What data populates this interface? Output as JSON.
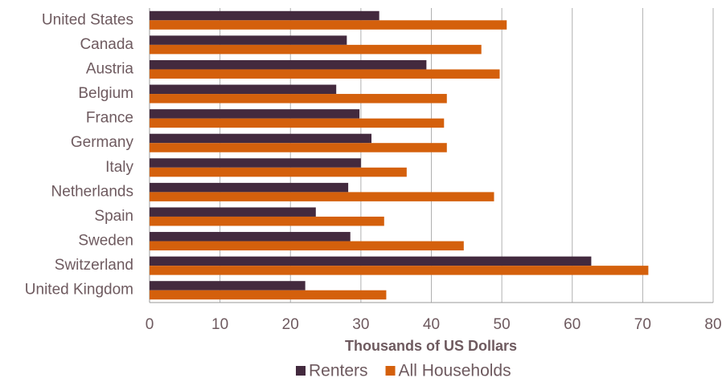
{
  "chart_data": {
    "type": "hbar",
    "categories": [
      "United States",
      "Canada",
      "Austria",
      "Belgium",
      "France",
      "Germany",
      "Italy",
      "Netherlands",
      "Spain",
      "Sweden",
      "Switzerland",
      "United Kingdom"
    ],
    "series": [
      {
        "name": "Renters",
        "color": "#432a3e",
        "values": [
          32.6,
          28.0,
          39.3,
          26.5,
          29.8,
          31.5,
          30.0,
          28.2,
          23.6,
          28.5,
          62.7,
          22.1
        ]
      },
      {
        "name": "All Households",
        "color": "#d4600c",
        "values": [
          50.7,
          47.1,
          49.7,
          42.2,
          41.8,
          42.2,
          36.5,
          48.9,
          33.3,
          44.6,
          70.8,
          33.6
        ]
      }
    ],
    "xlabel": "Thousands of US Dollars",
    "xlim": [
      0,
      80
    ],
    "xticks": [
      0,
      10,
      20,
      30,
      40,
      50,
      60,
      70,
      80
    ],
    "grid": true,
    "legend": "bottom"
  }
}
